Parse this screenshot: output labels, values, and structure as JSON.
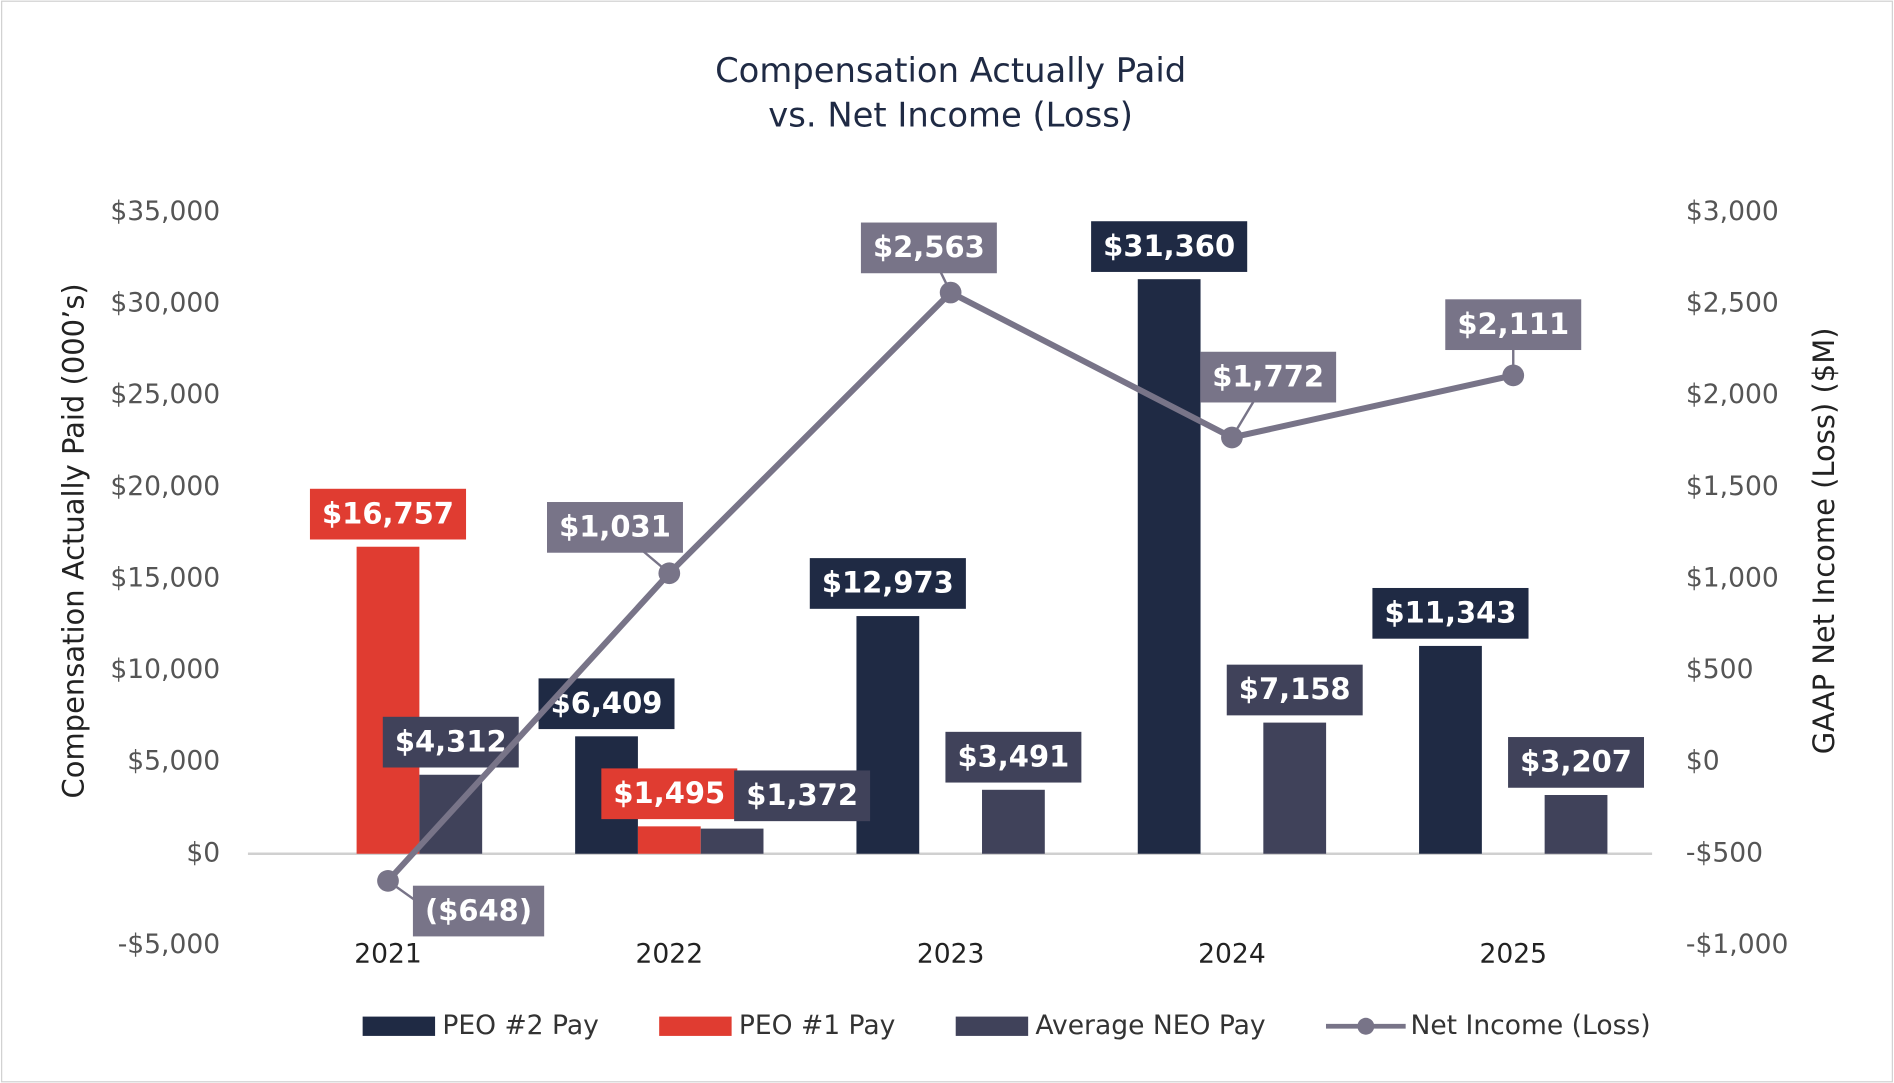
{
  "chart_data": {
    "type": "bar",
    "title": [
      "Compensation Actually Paid",
      "vs. Net Income (Loss)"
    ],
    "y_label": "Compensation Actually Paid (000’s)",
    "y2_label": "GAAP Net Income (Loss) ($M)",
    "categories": [
      "2021",
      "2022",
      "2023",
      "2024",
      "2025"
    ],
    "ylim": [
      -5000,
      35000
    ],
    "yticks": [
      {
        "value": -5000,
        "label": "-$5,000"
      },
      {
        "value": 0,
        "label": "$0"
      },
      {
        "value": 5000,
        "label": "$5,000"
      },
      {
        "value": 10000,
        "label": "$10,000"
      },
      {
        "value": 15000,
        "label": "$15,000"
      },
      {
        "value": 20000,
        "label": "$20,000"
      },
      {
        "value": 25000,
        "label": "$25,000"
      },
      {
        "value": 30000,
        "label": "$30,000"
      },
      {
        "value": 35000,
        "label": "$35,000"
      }
    ],
    "y2lim": [
      -1000,
      3000
    ],
    "y2ticks": [
      {
        "value": -1000,
        "label": "-$1,000"
      },
      {
        "value": -500,
        "label": "-$500"
      },
      {
        "value": 0,
        "label": "$0"
      },
      {
        "value": 500,
        "label": "$500"
      },
      {
        "value": 1000,
        "label": "$1,000"
      },
      {
        "value": 1500,
        "label": "$1,500"
      },
      {
        "value": 2000,
        "label": "$2,000"
      },
      {
        "value": 2500,
        "label": "$2,500"
      },
      {
        "value": 3000,
        "label": "$3,000"
      }
    ],
    "grid": false,
    "legend": "bottom",
    "series": [
      {
        "name": "PEO #2 Pay",
        "type": "bar",
        "color": "#1f2a44",
        "values": [
          null,
          6409,
          12973,
          31360,
          11343
        ],
        "value_labels": [
          null,
          "$6,409",
          "$12,973",
          "$31,360",
          "$11,343"
        ]
      },
      {
        "name": "PEO #1 Pay",
        "type": "bar",
        "color": "#e03c31",
        "values": [
          16757,
          1495,
          null,
          null,
          null
        ],
        "value_labels": [
          "$16,757",
          "$1,495",
          null,
          null,
          null
        ]
      },
      {
        "name": "Average NEO Pay",
        "type": "bar",
        "color": "#40425a",
        "values": [
          4312,
          1372,
          3491,
          7158,
          3207
        ],
        "value_labels": [
          "$4,312",
          "$1,372",
          "$3,491",
          "$7,158",
          "$3,207"
        ]
      },
      {
        "name": "Net Income (Loss)",
        "type": "line",
        "axis": "y2",
        "color": "#787488",
        "values": [
          -648,
          1031,
          2563,
          1772,
          2111
        ],
        "value_labels": [
          "($648)",
          "$1,031",
          "$2,563",
          "$1,772",
          "$2,111"
        ]
      }
    ]
  }
}
